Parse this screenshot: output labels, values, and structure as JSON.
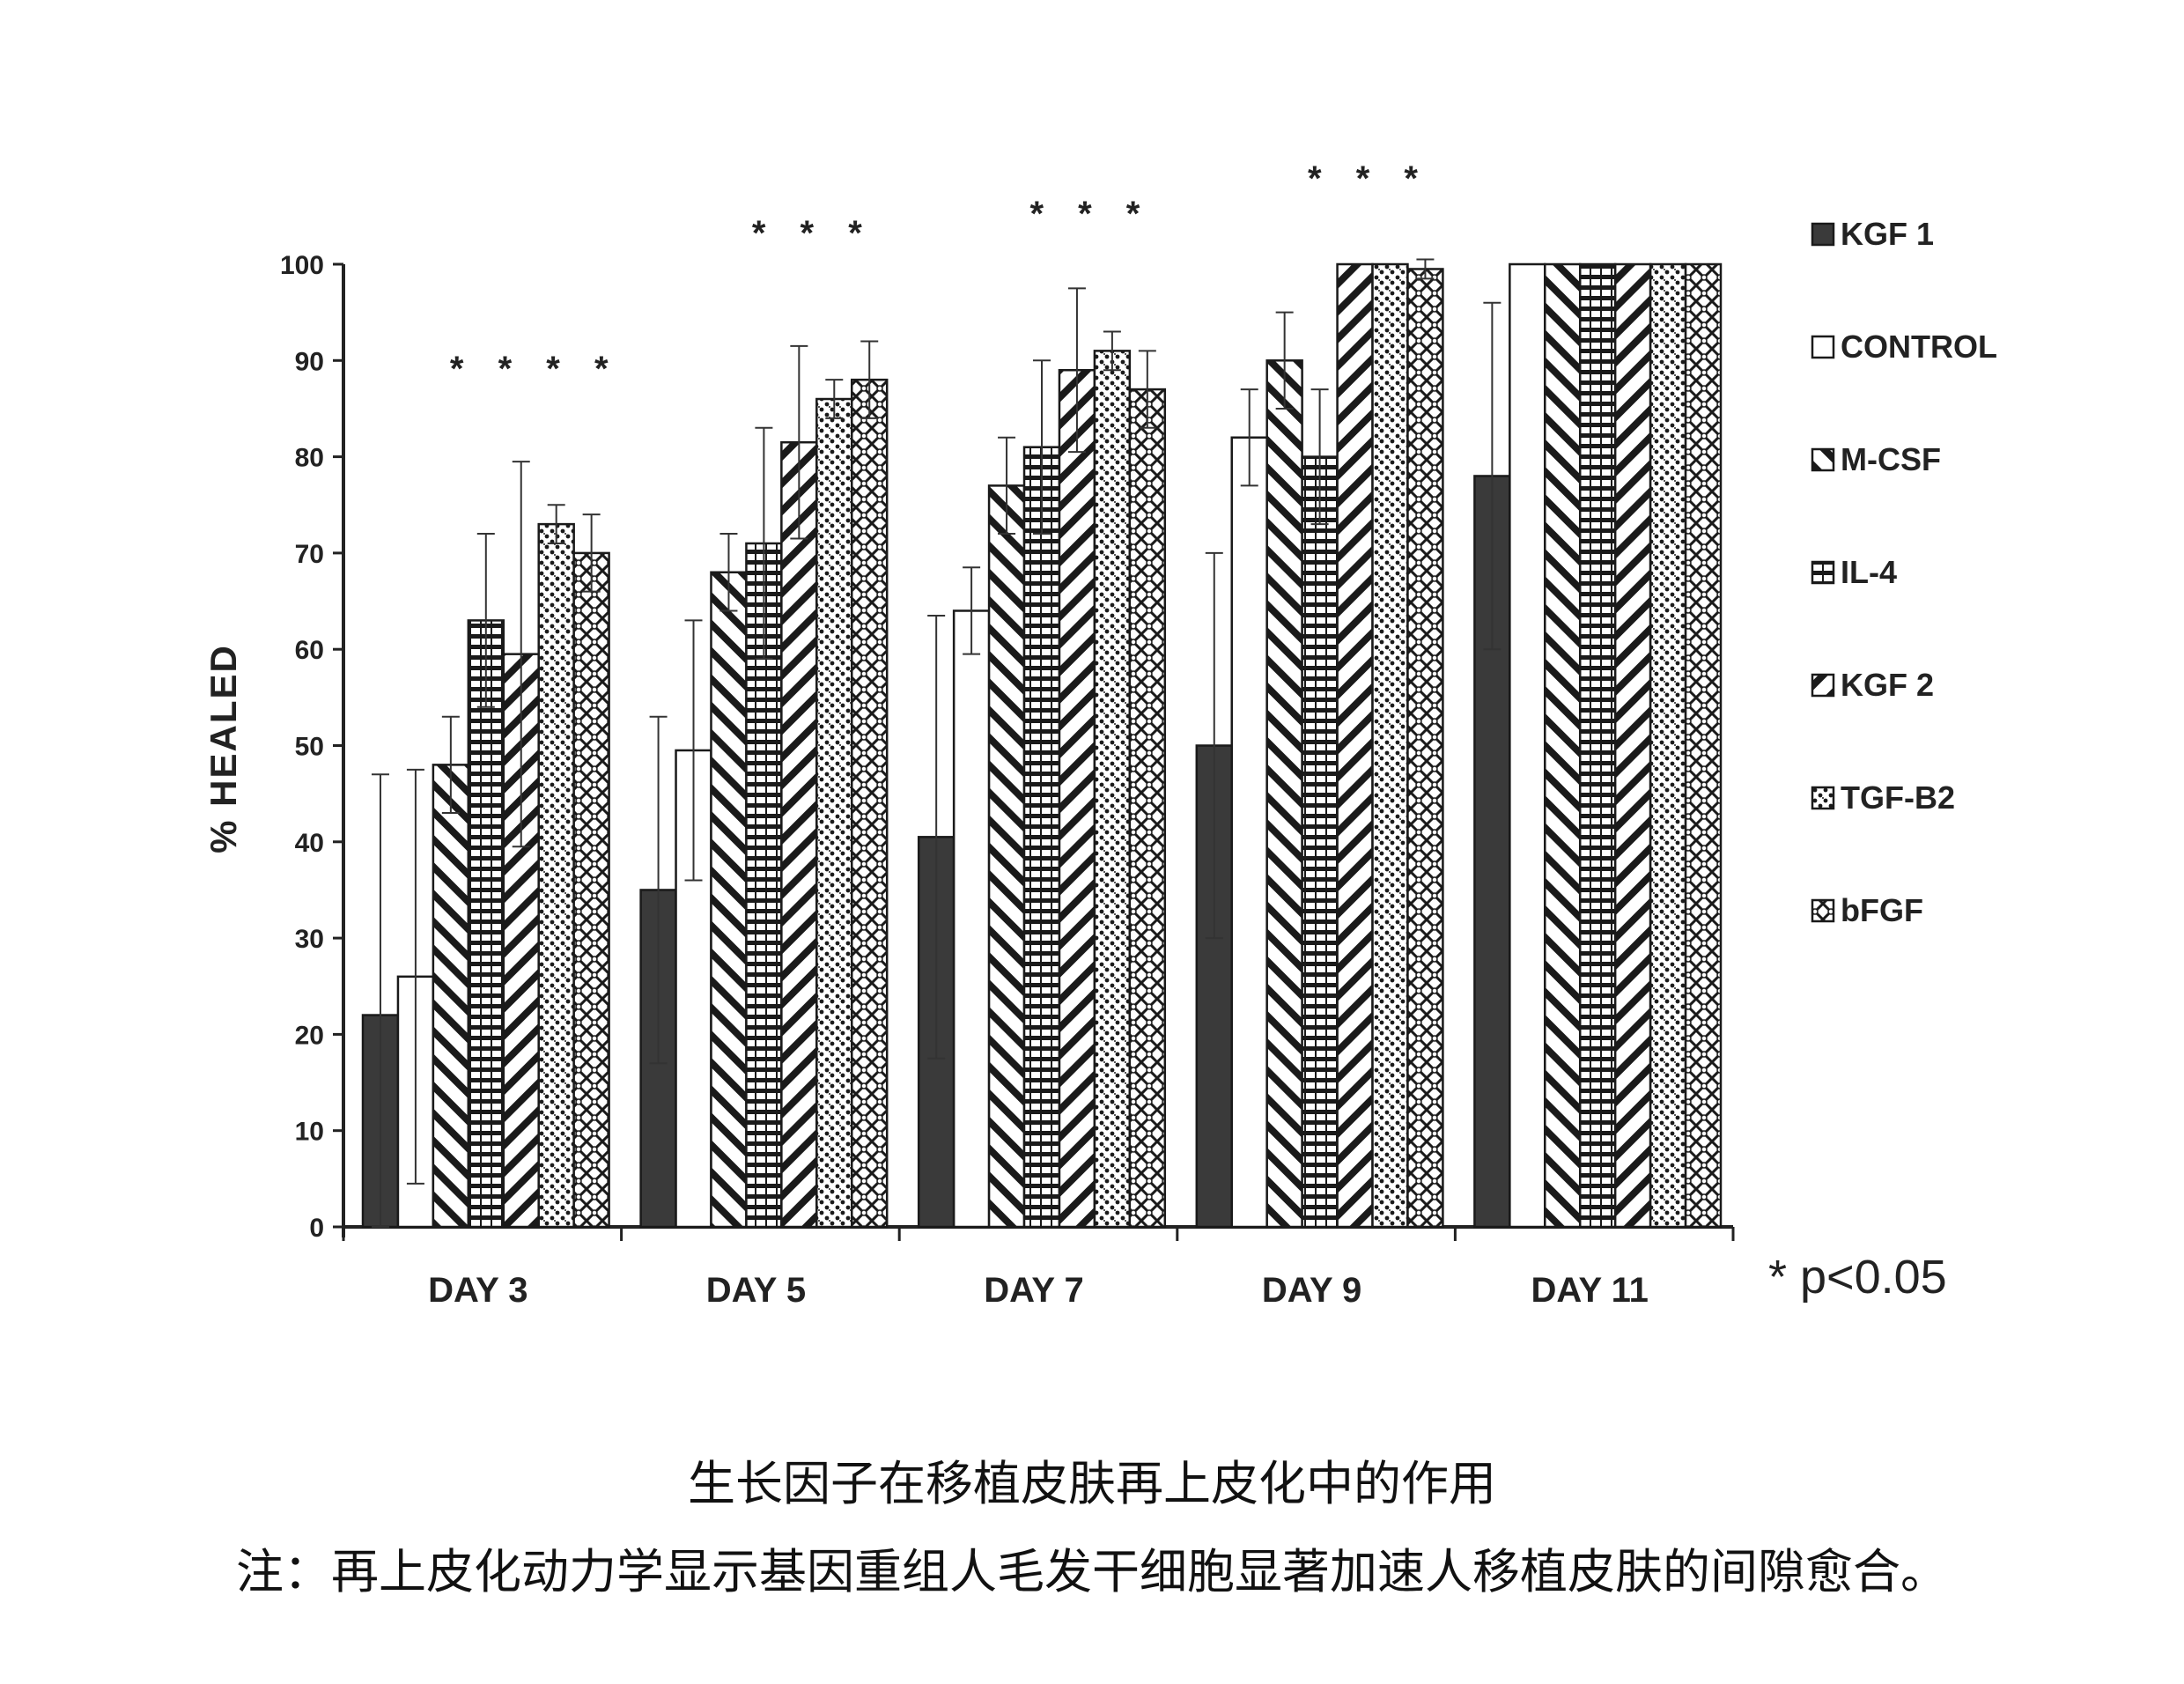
{
  "chart_data": {
    "type": "bar",
    "ylabel": "% HEALED",
    "xlabel": "",
    "ylim": [
      0,
      100
    ],
    "yticks": [
      0,
      10,
      20,
      30,
      40,
      50,
      60,
      70,
      80,
      90,
      100
    ],
    "categories": [
      "DAY 3",
      "DAY 5",
      "DAY 7",
      "DAY 9",
      "DAY 11"
    ],
    "series": [
      {
        "name": "KGF 1",
        "pattern": "solid",
        "values": [
          22,
          35,
          40.5,
          50,
          78
        ],
        "errors": [
          25,
          18,
          23,
          20,
          18
        ]
      },
      {
        "name": "CONTROL",
        "pattern": "open",
        "values": [
          26,
          49.5,
          64,
          82,
          100
        ],
        "errors": [
          21.5,
          13.5,
          4.5,
          5,
          0
        ]
      },
      {
        "name": "M-CSF",
        "pattern": "backslash",
        "values": [
          48,
          68,
          77,
          90,
          100
        ],
        "errors": [
          5,
          4,
          5,
          5,
          0
        ]
      },
      {
        "name": "IL-4",
        "pattern": "hlines",
        "values": [
          63,
          71,
          81,
          80,
          100
        ],
        "errors": [
          9,
          12,
          9,
          7,
          0
        ]
      },
      {
        "name": "KGF 2",
        "pattern": "slash",
        "values": [
          59.5,
          81.5,
          89,
          100,
          100
        ],
        "errors": [
          20,
          10,
          8.5,
          0,
          0
        ]
      },
      {
        "name": "TGF-B2",
        "pattern": "dots",
        "values": [
          73,
          86,
          91,
          100,
          100
        ],
        "errors": [
          2,
          2,
          2,
          0,
          0
        ]
      },
      {
        "name": "bFGF",
        "pattern": "crosshatch",
        "values": [
          70,
          88,
          87,
          99.5,
          100
        ],
        "errors": [
          4,
          4,
          4,
          1,
          0
        ]
      }
    ],
    "significance": [
      {
        "category": "DAY 3",
        "marks": "* * * *"
      },
      {
        "category": "DAY 5",
        "marks": "* * *"
      },
      {
        "category": "DAY 7",
        "marks": "* * *"
      },
      {
        "category": "DAY 9",
        "marks": "* * *"
      }
    ],
    "legend_position": "right",
    "note": "* p<0.05"
  },
  "caption": {
    "title": "生长因子在移植皮肤再上皮化中的作用",
    "note": "注：再上皮化动力学显示基因重组人毛发干细胞显著加速人移植皮肤的间隙愈合。"
  }
}
